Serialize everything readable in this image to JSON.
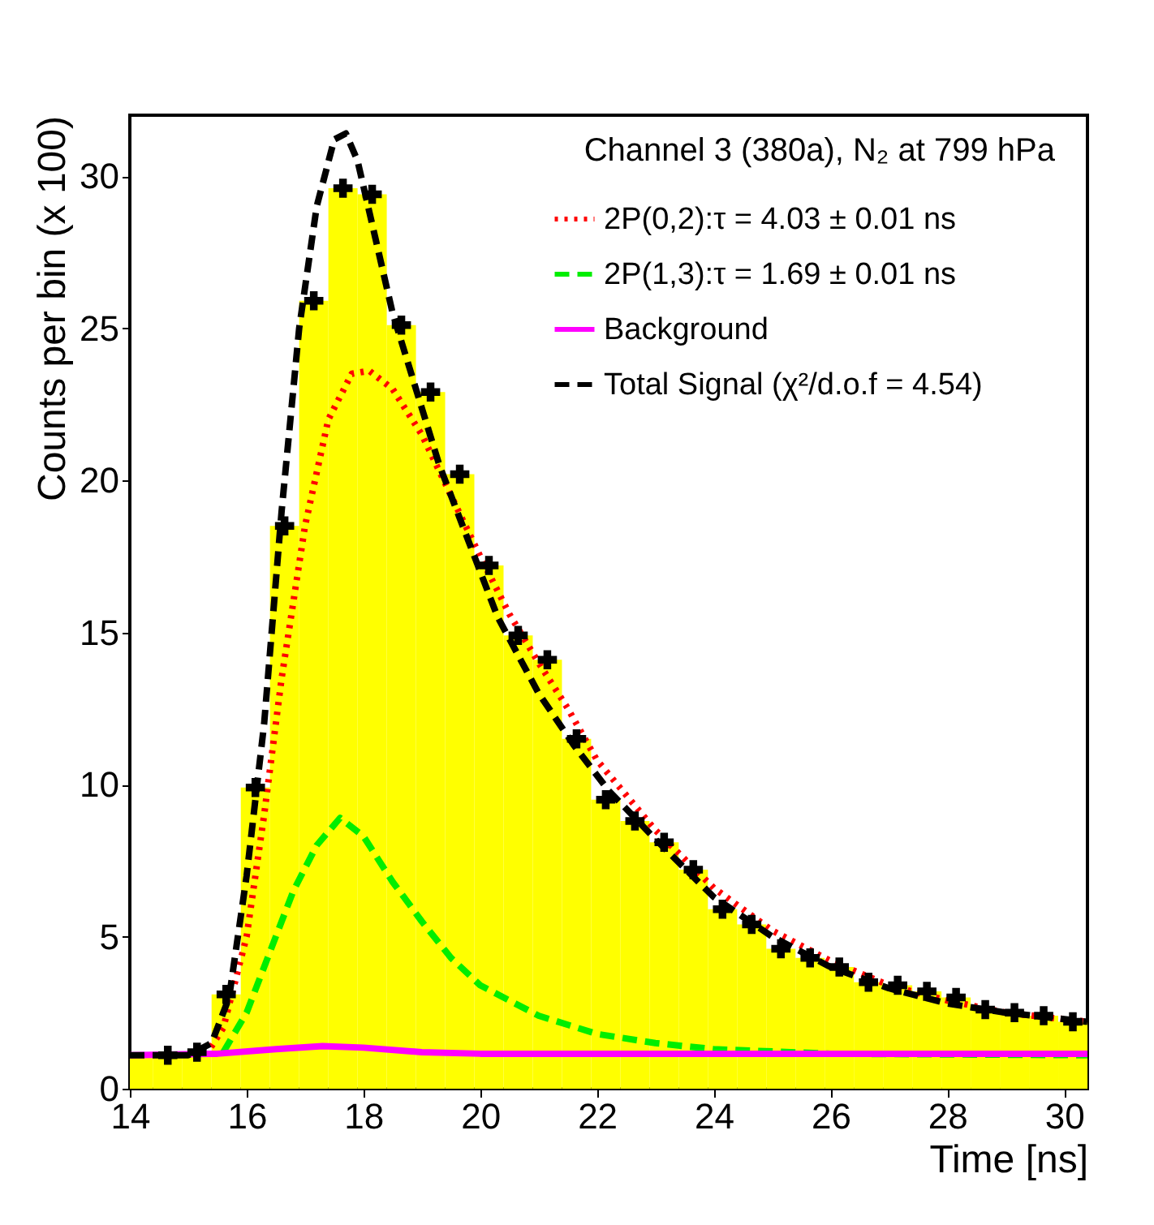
{
  "chart_data": {
    "type": "histogram",
    "xlabel": "Time [ns]",
    "ylabel": "Counts per bin (x 100)",
    "annotations": [
      "Channel 3 (380a), N₂ at 799 hPa"
    ],
    "color": "#ffff00",
    "bins": [
      14.0,
      14.4,
      14.9,
      15.4,
      15.9,
      16.4,
      16.9,
      17.4,
      17.9,
      18.4,
      18.9,
      19.4,
      19.9,
      20.4,
      20.9,
      21.4,
      21.9,
      22.4,
      22.9,
      23.4,
      23.9,
      24.4,
      24.9,
      25.4,
      25.9,
      26.4,
      26.9,
      27.4,
      27.9,
      28.4,
      28.9,
      29.4,
      29.9,
      30.4
    ],
    "values": [
      1.1,
      1.1,
      1.2,
      3.1,
      9.9,
      18.5,
      25.9,
      29.6,
      29.4,
      25.1,
      22.9,
      20.2,
      17.2,
      14.9,
      14.1,
      11.5,
      9.5,
      8.8,
      8.1,
      7.2,
      5.9,
      5.4,
      4.6,
      4.3,
      4.0,
      3.5,
      3.4,
      3.2,
      3.0,
      2.6,
      2.5,
      2.4,
      2.2
    ],
    "series": [
      {
        "type": "scatter",
        "marker": "cross",
        "color": "#000000",
        "x": [
          14.65,
          15.15,
          15.65,
          16.15,
          16.65,
          17.15,
          17.65,
          18.15,
          18.65,
          19.15,
          19.65,
          20.15,
          20.65,
          21.15,
          21.65,
          22.15,
          22.65,
          23.15,
          23.65,
          24.15,
          24.65,
          25.15,
          25.65,
          26.15,
          26.65,
          27.15,
          27.65,
          28.15,
          28.65,
          29.15,
          29.65,
          30.15
        ],
        "values": [
          1.1,
          1.2,
          3.1,
          9.9,
          18.5,
          25.9,
          29.6,
          29.4,
          25.1,
          22.9,
          20.2,
          17.2,
          14.9,
          14.1,
          11.5,
          9.5,
          8.8,
          8.1,
          7.2,
          5.9,
          5.4,
          4.6,
          4.3,
          4.0,
          3.5,
          3.4,
          3.2,
          3.0,
          2.6,
          2.5,
          2.4,
          2.2
        ]
      },
      {
        "type": "line",
        "name": "2P(0,2):τ = 4.03 ± 0.01 ns",
        "color": "#ff0000",
        "line_style": "dotted",
        "x": [
          15.3,
          15.6,
          16.0,
          16.3,
          16.6,
          17.0,
          17.4,
          17.8,
          18.1,
          18.5,
          19.0,
          19.5,
          20.0,
          20.5,
          21.0,
          21.5,
          22.0,
          23.0,
          24.0,
          25.0,
          26.0,
          27.0,
          28.0,
          29.0,
          30.4
        ],
        "values": [
          1.1,
          2,
          5,
          9,
          13.5,
          18.5,
          22,
          23.5,
          23.6,
          23,
          21.5,
          19.5,
          17.5,
          15.6,
          14,
          12.5,
          10.8,
          8.5,
          6.6,
          5.2,
          4.2,
          3.4,
          2.9,
          2.5,
          2.2
        ]
      },
      {
        "type": "line",
        "name": "2P(1,3):τ = 1.69 ± 0.01 ns",
        "color": "#00ee00",
        "line_style": "dashed",
        "x": [
          15.6,
          16.0,
          16.4,
          16.8,
          17.2,
          17.6,
          18.0,
          18.5,
          19.0,
          19.5,
          20.0,
          21.0,
          22.0,
          23.0,
          24.0,
          26.0,
          30.4
        ],
        "values": [
          1.2,
          2.5,
          4.5,
          6.5,
          8,
          8.9,
          8.3,
          6.8,
          5.5,
          4.3,
          3.4,
          2.4,
          1.8,
          1.5,
          1.3,
          1.15,
          1.1
        ]
      },
      {
        "type": "line",
        "name": "Background",
        "color": "#ff00ff",
        "line_style": "solid",
        "x": [
          14.0,
          15.5,
          16.5,
          17.3,
          18.0,
          19.0,
          20.0,
          30.4
        ],
        "values": [
          1.1,
          1.15,
          1.3,
          1.4,
          1.35,
          1.2,
          1.15,
          1.15
        ]
      },
      {
        "type": "line",
        "name": "Total Signal (χ²/d.o.f = 4.54)",
        "color": "#000000",
        "line_style": "dashed",
        "x": [
          14.0,
          15.0,
          15.4,
          15.7,
          16.0,
          16.3,
          16.6,
          16.9,
          17.2,
          17.5,
          17.7,
          17.9,
          18.2,
          18.5,
          18.9,
          19.3,
          19.8,
          20.3,
          21.0,
          21.6,
          22.2,
          23.0,
          24.0,
          25.0,
          26.0,
          27.0,
          28.0,
          29.0,
          30.4
        ],
        "values": [
          1.1,
          1.1,
          1.5,
          3,
          7,
          12,
          19,
          25,
          29,
          31.2,
          31.4,
          30.5,
          28,
          25.5,
          23,
          20.5,
          18,
          15.5,
          13,
          11.3,
          9.8,
          8.2,
          6.3,
          5,
          4,
          3.3,
          2.8,
          2.5,
          2.2
        ]
      }
    ],
    "xlim": [
      14,
      30.4
    ],
    "xticks": [
      14,
      16,
      18,
      20,
      22,
      24,
      26,
      28,
      30
    ],
    "ylim": [
      0,
      32
    ],
    "yticks": [
      0,
      5,
      10,
      15,
      20,
      25,
      30
    ],
    "grid": false,
    "legend": "top right"
  }
}
